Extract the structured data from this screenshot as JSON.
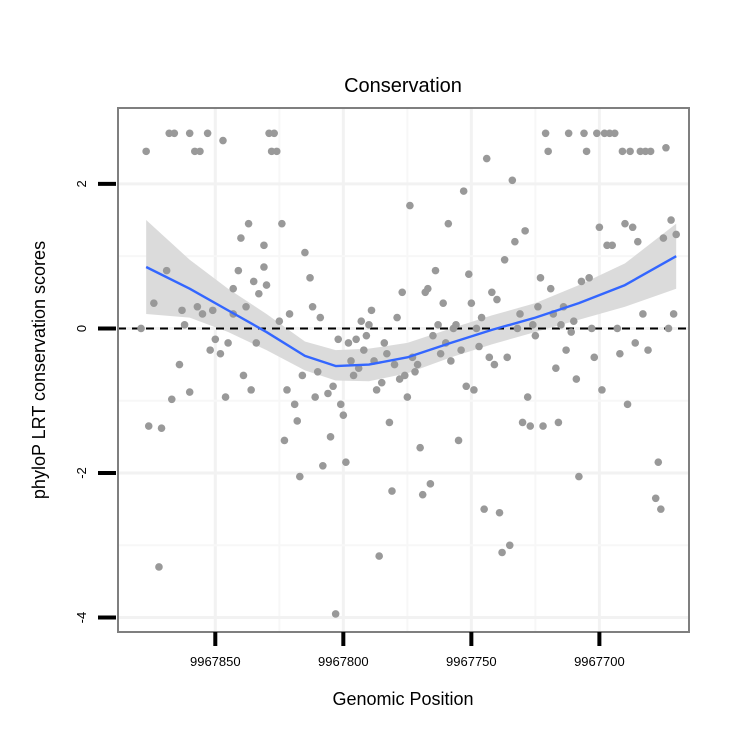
{
  "chart_data": {
    "type": "scatter",
    "title": "Conservation",
    "xlabel": "Genomic Position",
    "ylabel": "phyloP LRT conservation scores",
    "x_reversed": true,
    "xlim": [
      9967665,
      9967888
    ],
    "ylim": [
      -4.2,
      3.05
    ],
    "x_ticks": [
      9967850,
      9967800,
      9967750,
      9967700
    ],
    "y_ticks": [
      -4,
      -2,
      0,
      2
    ],
    "x_tick_labels": [
      "9967850",
      "9967800",
      "9967750",
      "9967700"
    ],
    "y_tick_labels": [
      "-4",
      "-2",
      "0",
      "2"
    ],
    "reference_line": {
      "y": 0,
      "style": "dashed"
    },
    "grid": true,
    "point_color": "#999999",
    "smooth_color": "#3366FF",
    "band_color": "#D9D9D9",
    "smooth": [
      {
        "x": 9967877,
        "y": 0.85,
        "lo": 0.2,
        "hi": 1.5
      },
      {
        "x": 9967860,
        "y": 0.55,
        "lo": 0.15,
        "hi": 0.95
      },
      {
        "x": 9967845,
        "y": 0.25,
        "lo": -0.05,
        "hi": 0.55
      },
      {
        "x": 9967830,
        "y": -0.05,
        "lo": -0.3,
        "hi": 0.2
      },
      {
        "x": 9967815,
        "y": -0.38,
        "lo": -0.58,
        "hi": -0.18
      },
      {
        "x": 9967803,
        "y": -0.52,
        "lo": -0.72,
        "hi": -0.3
      },
      {
        "x": 9967790,
        "y": -0.5,
        "lo": -0.73,
        "hi": -0.28
      },
      {
        "x": 9967775,
        "y": -0.4,
        "lo": -0.62,
        "hi": -0.2
      },
      {
        "x": 9967758,
        "y": -0.2,
        "lo": -0.4,
        "hi": 0.0
      },
      {
        "x": 9967742,
        "y": -0.02,
        "lo": -0.22,
        "hi": 0.18
      },
      {
        "x": 9967725,
        "y": 0.15,
        "lo": -0.05,
        "hi": 0.35
      },
      {
        "x": 9967708,
        "y": 0.35,
        "lo": 0.12,
        "hi": 0.6
      },
      {
        "x": 9967690,
        "y": 0.6,
        "lo": 0.3,
        "hi": 0.9
      },
      {
        "x": 9967670,
        "y": 1.0,
        "lo": 0.55,
        "hi": 1.45
      }
    ],
    "points": [
      {
        "x": 9967879,
        "y": 0.0
      },
      {
        "x": 9967877,
        "y": 2.45
      },
      {
        "x": 9967876,
        "y": -1.35
      },
      {
        "x": 9967874,
        "y": 0.35
      },
      {
        "x": 9967872,
        "y": -3.3
      },
      {
        "x": 9967871,
        "y": -1.38
      },
      {
        "x": 9967869,
        "y": 0.8
      },
      {
        "x": 9967868,
        "y": 2.7
      },
      {
        "x": 9967867,
        "y": -0.98
      },
      {
        "x": 9967866,
        "y": 2.7
      },
      {
        "x": 9967864,
        "y": -0.5
      },
      {
        "x": 9967863,
        "y": 0.25
      },
      {
        "x": 9967862,
        "y": 0.05
      },
      {
        "x": 9967860,
        "y": 2.7
      },
      {
        "x": 9967860,
        "y": -0.88
      },
      {
        "x": 9967858,
        "y": 2.45
      },
      {
        "x": 9967857,
        "y": 0.3
      },
      {
        "x": 9967856,
        "y": 2.45
      },
      {
        "x": 9967855,
        "y": 0.2
      },
      {
        "x": 9967853,
        "y": 2.7
      },
      {
        "x": 9967852,
        "y": -0.3
      },
      {
        "x": 9967851,
        "y": 0.25
      },
      {
        "x": 9967850,
        "y": -0.15
      },
      {
        "x": 9967848,
        "y": -0.35
      },
      {
        "x": 9967847,
        "y": 2.6
      },
      {
        "x": 9967846,
        "y": -0.95
      },
      {
        "x": 9967845,
        "y": -0.2
      },
      {
        "x": 9967843,
        "y": 0.55
      },
      {
        "x": 9967843,
        "y": 0.2
      },
      {
        "x": 9967841,
        "y": 0.8
      },
      {
        "x": 9967840,
        "y": 1.25
      },
      {
        "x": 9967839,
        "y": -0.65
      },
      {
        "x": 9967838,
        "y": 0.3
      },
      {
        "x": 9967837,
        "y": 1.45
      },
      {
        "x": 9967836,
        "y": -0.85
      },
      {
        "x": 9967835,
        "y": 0.65
      },
      {
        "x": 9967834,
        "y": -0.2
      },
      {
        "x": 9967833,
        "y": 0.48
      },
      {
        "x": 9967831,
        "y": 0.85
      },
      {
        "x": 9967831,
        "y": 1.15
      },
      {
        "x": 9967830,
        "y": 0.6
      },
      {
        "x": 9967829,
        "y": 2.7
      },
      {
        "x": 9967828,
        "y": 2.45
      },
      {
        "x": 9967827,
        "y": 2.7
      },
      {
        "x": 9967826,
        "y": 2.45
      },
      {
        "x": 9967825,
        "y": 0.1
      },
      {
        "x": 9967824,
        "y": 1.45
      },
      {
        "x": 9967823,
        "y": -1.55
      },
      {
        "x": 9967822,
        "y": -0.85
      },
      {
        "x": 9967821,
        "y": 0.2
      },
      {
        "x": 9967819,
        "y": -1.05
      },
      {
        "x": 9967818,
        "y": -1.28
      },
      {
        "x": 9967817,
        "y": -2.05
      },
      {
        "x": 9967816,
        "y": -0.65
      },
      {
        "x": 9967815,
        "y": 1.05
      },
      {
        "x": 9967813,
        "y": 0.7
      },
      {
        "x": 9967812,
        "y": 0.3
      },
      {
        "x": 9967811,
        "y": -0.95
      },
      {
        "x": 9967810,
        "y": -0.6
      },
      {
        "x": 9967809,
        "y": 0.15
      },
      {
        "x": 9967808,
        "y": -1.9
      },
      {
        "x": 9967806,
        "y": -0.9
      },
      {
        "x": 9967805,
        "y": -1.5
      },
      {
        "x": 9967804,
        "y": -0.8
      },
      {
        "x": 9967803,
        "y": -3.95
      },
      {
        "x": 9967802,
        "y": -0.15
      },
      {
        "x": 9967801,
        "y": -1.05
      },
      {
        "x": 9967800,
        "y": -1.2
      },
      {
        "x": 9967799,
        "y": -1.85
      },
      {
        "x": 9967798,
        "y": -0.2
      },
      {
        "x": 9967797,
        "y": -0.45
      },
      {
        "x": 9967796,
        "y": -0.65
      },
      {
        "x": 9967795,
        "y": -0.15
      },
      {
        "x": 9967794,
        "y": -0.55
      },
      {
        "x": 9967793,
        "y": 0.1
      },
      {
        "x": 9967792,
        "y": -0.3
      },
      {
        "x": 9967791,
        "y": -0.1
      },
      {
        "x": 9967790,
        "y": 0.05
      },
      {
        "x": 9967789,
        "y": 0.25
      },
      {
        "x": 9967788,
        "y": -0.45
      },
      {
        "x": 9967787,
        "y": -0.85
      },
      {
        "x": 9967786,
        "y": -3.15
      },
      {
        "x": 9967785,
        "y": -0.75
      },
      {
        "x": 9967784,
        "y": -0.2
      },
      {
        "x": 9967783,
        "y": -0.35
      },
      {
        "x": 9967782,
        "y": -1.3
      },
      {
        "x": 9967781,
        "y": -2.25
      },
      {
        "x": 9967780,
        "y": -0.5
      },
      {
        "x": 9967779,
        "y": 0.15
      },
      {
        "x": 9967778,
        "y": -0.7
      },
      {
        "x": 9967777,
        "y": 0.5
      },
      {
        "x": 9967776,
        "y": -0.65
      },
      {
        "x": 9967775,
        "y": -0.95
      },
      {
        "x": 9967774,
        "y": 1.7
      },
      {
        "x": 9967773,
        "y": -0.4
      },
      {
        "x": 9967772,
        "y": -0.6
      },
      {
        "x": 9967771,
        "y": -0.5
      },
      {
        "x": 9967770,
        "y": -1.65
      },
      {
        "x": 9967769,
        "y": -2.3
      },
      {
        "x": 9967768,
        "y": 0.5
      },
      {
        "x": 9967767,
        "y": 0.55
      },
      {
        "x": 9967766,
        "y": -2.15
      },
      {
        "x": 9967765,
        "y": -0.1
      },
      {
        "x": 9967764,
        "y": 0.8
      },
      {
        "x": 9967763,
        "y": 0.05
      },
      {
        "x": 9967762,
        "y": -0.35
      },
      {
        "x": 9967761,
        "y": 0.35
      },
      {
        "x": 9967760,
        "y": -0.2
      },
      {
        "x": 9967759,
        "y": 1.45
      },
      {
        "x": 9967758,
        "y": -0.45
      },
      {
        "x": 9967757,
        "y": 0.0
      },
      {
        "x": 9967756,
        "y": 0.05
      },
      {
        "x": 9967755,
        "y": -1.55
      },
      {
        "x": 9967754,
        "y": -0.3
      },
      {
        "x": 9967753,
        "y": 1.9
      },
      {
        "x": 9967752,
        "y": -0.8
      },
      {
        "x": 9967751,
        "y": 0.75
      },
      {
        "x": 9967750,
        "y": 0.35
      },
      {
        "x": 9967749,
        "y": -0.85
      },
      {
        "x": 9967748,
        "y": 0.0
      },
      {
        "x": 9967747,
        "y": -0.25
      },
      {
        "x": 9967746,
        "y": 0.15
      },
      {
        "x": 9967745,
        "y": -2.5
      },
      {
        "x": 9967744,
        "y": 2.35
      },
      {
        "x": 9967743,
        "y": -0.4
      },
      {
        "x": 9967742,
        "y": 0.5
      },
      {
        "x": 9967741,
        "y": -0.5
      },
      {
        "x": 9967740,
        "y": 0.4
      },
      {
        "x": 9967739,
        "y": -2.55
      },
      {
        "x": 9967738,
        "y": -3.1
      },
      {
        "x": 9967737,
        "y": 0.95
      },
      {
        "x": 9967736,
        "y": -0.4
      },
      {
        "x": 9967735,
        "y": -3.0
      },
      {
        "x": 9967734,
        "y": 2.05
      },
      {
        "x": 9967733,
        "y": 1.2
      },
      {
        "x": 9967732,
        "y": 0.0
      },
      {
        "x": 9967731,
        "y": 0.2
      },
      {
        "x": 9967730,
        "y": -1.3
      },
      {
        "x": 9967729,
        "y": 1.35
      },
      {
        "x": 9967728,
        "y": -0.95
      },
      {
        "x": 9967727,
        "y": -1.35
      },
      {
        "x": 9967726,
        "y": 0.05
      },
      {
        "x": 9967725,
        "y": -0.1
      },
      {
        "x": 9967724,
        "y": 0.3
      },
      {
        "x": 9967723,
        "y": 0.7
      },
      {
        "x": 9967722,
        "y": -1.35
      },
      {
        "x": 9967721,
        "y": 2.7
      },
      {
        "x": 9967720,
        "y": 2.45
      },
      {
        "x": 9967719,
        "y": 0.55
      },
      {
        "x": 9967718,
        "y": 0.2
      },
      {
        "x": 9967717,
        "y": -0.55
      },
      {
        "x": 9967716,
        "y": -1.3
      },
      {
        "x": 9967715,
        "y": 0.05
      },
      {
        "x": 9967714,
        "y": 0.3
      },
      {
        "x": 9967713,
        "y": -0.3
      },
      {
        "x": 9967712,
        "y": 2.7
      },
      {
        "x": 9967711,
        "y": -0.05
      },
      {
        "x": 9967710,
        "y": 0.1
      },
      {
        "x": 9967709,
        "y": -0.7
      },
      {
        "x": 9967708,
        "y": -2.05
      },
      {
        "x": 9967707,
        "y": 0.65
      },
      {
        "x": 9967706,
        "y": 2.7
      },
      {
        "x": 9967705,
        "y": 2.45
      },
      {
        "x": 9967704,
        "y": 0.7
      },
      {
        "x": 9967703,
        "y": 0.0
      },
      {
        "x": 9967702,
        "y": -0.4
      },
      {
        "x": 9967701,
        "y": 2.7
      },
      {
        "x": 9967700,
        "y": 1.4
      },
      {
        "x": 9967699,
        "y": -0.85
      },
      {
        "x": 9967698,
        "y": 2.7
      },
      {
        "x": 9967697,
        "y": 1.15
      },
      {
        "x": 9967696,
        "y": 2.7
      },
      {
        "x": 9967695,
        "y": 1.15
      },
      {
        "x": 9967694,
        "y": 2.7
      },
      {
        "x": 9967693,
        "y": 0.0
      },
      {
        "x": 9967692,
        "y": -0.35
      },
      {
        "x": 9967691,
        "y": 2.45
      },
      {
        "x": 9967690,
        "y": 1.45
      },
      {
        "x": 9967689,
        "y": -1.05
      },
      {
        "x": 9967688,
        "y": 2.45
      },
      {
        "x": 9967687,
        "y": 1.4
      },
      {
        "x": 9967686,
        "y": -0.2
      },
      {
        "x": 9967685,
        "y": 1.2
      },
      {
        "x": 9967684,
        "y": 2.45
      },
      {
        "x": 9967683,
        "y": 0.2
      },
      {
        "x": 9967682,
        "y": 2.45
      },
      {
        "x": 9967681,
        "y": -0.3
      },
      {
        "x": 9967680,
        "y": 2.45
      },
      {
        "x": 9967678,
        "y": -2.35
      },
      {
        "x": 9967677,
        "y": -1.85
      },
      {
        "x": 9967676,
        "y": -2.5
      },
      {
        "x": 9967675,
        "y": 1.25
      },
      {
        "x": 9967674,
        "y": 2.5
      },
      {
        "x": 9967673,
        "y": 0.0
      },
      {
        "x": 9967672,
        "y": 1.5
      },
      {
        "x": 9967671,
        "y": 0.2
      },
      {
        "x": 9967670,
        "y": 1.3
      }
    ]
  }
}
